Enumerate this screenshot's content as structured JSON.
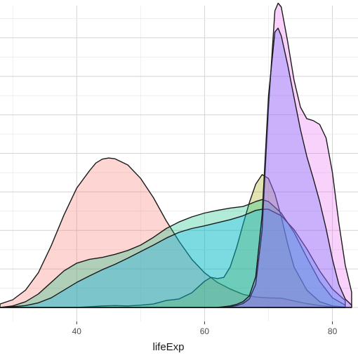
{
  "chart_data": {
    "type": "area",
    "subtype": "density",
    "xlabel": "lifeExp",
    "ylabel": "",
    "title": "",
    "xlim": [
      28,
      84
    ],
    "ylim": [
      0,
      0.082
    ],
    "x_ticks": [
      40,
      60,
      80
    ],
    "grid": true,
    "legend": "none",
    "series": [
      {
        "fill": "#f8766d",
        "points": [
          [
            28,
            0.0009
          ],
          [
            30,
            0.002
          ],
          [
            32,
            0.0045
          ],
          [
            34,
            0.009
          ],
          [
            36,
            0.016
          ],
          [
            38,
            0.024
          ],
          [
            40,
            0.031
          ],
          [
            42,
            0.0355
          ],
          [
            43,
            0.0375
          ],
          [
            44,
            0.0385
          ],
          [
            45,
            0.0388
          ],
          [
            46,
            0.0386
          ],
          [
            48,
            0.037
          ],
          [
            50,
            0.0335
          ],
          [
            52,
            0.0285
          ],
          [
            54,
            0.0225
          ],
          [
            56,
            0.0172
          ],
          [
            58,
            0.0125
          ],
          [
            60,
            0.009
          ],
          [
            62,
            0.0065
          ],
          [
            64,
            0.0048
          ],
          [
            66,
            0.0034
          ],
          [
            68,
            0.0027
          ],
          [
            70,
            0.0025
          ],
          [
            72,
            0.0024
          ],
          [
            74,
            0.0017
          ],
          [
            76,
            0.001
          ],
          [
            78,
            0.0005
          ],
          [
            80,
            0.0002
          ],
          [
            82,
            0.0001
          ]
        ]
      },
      {
        "fill": "#a3a500",
        "points": [
          [
            28,
            0
          ],
          [
            36,
            0
          ],
          [
            40,
            0
          ],
          [
            42,
            0.0002
          ],
          [
            44,
            0.0004
          ],
          [
            46,
            0.0005
          ],
          [
            48,
            0.0004
          ],
          [
            50,
            0.0006
          ],
          [
            52,
            0.0009
          ],
          [
            54,
            0.0018
          ],
          [
            56,
            0.0022
          ],
          [
            58,
            0.0038
          ],
          [
            60,
            0.0068
          ],
          [
            61,
            0.0078
          ],
          [
            62,
            0.0075
          ],
          [
            63,
            0.0078
          ],
          [
            64,
            0.0105
          ],
          [
            65,
            0.0155
          ],
          [
            66,
            0.0215
          ],
          [
            67,
            0.0272
          ],
          [
            68,
            0.032
          ],
          [
            69,
            0.0345
          ],
          [
            70,
            0.0335
          ],
          [
            71,
            0.0295
          ],
          [
            72,
            0.0235
          ],
          [
            73,
            0.0165
          ],
          [
            74,
            0.0105
          ],
          [
            76,
            0.0045
          ],
          [
            78,
            0.0015
          ],
          [
            80,
            0.0004
          ],
          [
            82,
            0.0001
          ]
        ]
      },
      {
        "fill": "#00bf7d",
        "points": [
          [
            28,
            0
          ],
          [
            30,
            0.0004
          ],
          [
            32,
            0.0015
          ],
          [
            34,
            0.0035
          ],
          [
            36,
            0.0065
          ],
          [
            38,
            0.0095
          ],
          [
            40,
            0.0115
          ],
          [
            42,
            0.0125
          ],
          [
            44,
            0.013
          ],
          [
            46,
            0.0138
          ],
          [
            48,
            0.0148
          ],
          [
            50,
            0.0162
          ],
          [
            52,
            0.0182
          ],
          [
            54,
            0.0205
          ],
          [
            56,
            0.0222
          ],
          [
            58,
            0.0235
          ],
          [
            60,
            0.0245
          ],
          [
            62,
            0.0252
          ],
          [
            64,
            0.0258
          ],
          [
            66,
            0.0262
          ],
          [
            67,
            0.0268
          ],
          [
            68,
            0.0275
          ],
          [
            69,
            0.028
          ],
          [
            70,
            0.0275
          ],
          [
            72,
            0.0245
          ],
          [
            74,
            0.0195
          ],
          [
            76,
            0.013
          ],
          [
            78,
            0.0068
          ],
          [
            80,
            0.0025
          ],
          [
            82,
            0.0006
          ]
        ]
      },
      {
        "fill": "#00b0f6",
        "points": [
          [
            28,
            0
          ],
          [
            30,
            0.0002
          ],
          [
            32,
            0.0005
          ],
          [
            34,
            0.0012
          ],
          [
            36,
            0.0025
          ],
          [
            38,
            0.0045
          ],
          [
            40,
            0.0065
          ],
          [
            42,
            0.0082
          ],
          [
            44,
            0.0098
          ],
          [
            46,
            0.0112
          ],
          [
            48,
            0.0128
          ],
          [
            50,
            0.0145
          ],
          [
            52,
            0.0162
          ],
          [
            54,
            0.018
          ],
          [
            56,
            0.0195
          ],
          [
            58,
            0.0205
          ],
          [
            60,
            0.0212
          ],
          [
            62,
            0.022
          ],
          [
            64,
            0.0228
          ],
          [
            66,
            0.0238
          ],
          [
            68,
            0.0252
          ],
          [
            69,
            0.0255
          ],
          [
            70,
            0.0255
          ],
          [
            72,
            0.0238
          ],
          [
            74,
            0.0202
          ],
          [
            76,
            0.0152
          ],
          [
            78,
            0.0095
          ],
          [
            80,
            0.0048
          ],
          [
            82,
            0.0018
          ]
        ]
      },
      {
        "fill": "#e76bf3",
        "points": [
          [
            63,
            0
          ],
          [
            64,
            0.0002
          ],
          [
            65,
            0.0005
          ],
          [
            66,
            0.001
          ],
          [
            67,
            0.0022
          ],
          [
            68,
            0.006
          ],
          [
            69,
            0.02
          ],
          [
            70,
            0.052
          ],
          [
            71,
            0.077
          ],
          [
            71.5,
            0.079
          ],
          [
            72,
            0.078
          ],
          [
            73,
            0.069
          ],
          [
            74,
            0.059
          ],
          [
            75,
            0.052
          ],
          [
            76,
            0.049
          ],
          [
            77,
            0.0485
          ],
          [
            78,
            0.0475
          ],
          [
            79,
            0.044
          ],
          [
            80,
            0.035
          ],
          [
            81,
            0.022
          ],
          [
            82,
            0.011
          ],
          [
            83,
            0.004
          ]
        ]
      },
      {
        "fill": "#6464ff",
        "points": [
          [
            62,
            0
          ],
          [
            63,
            0.0002
          ],
          [
            64,
            0.0004
          ],
          [
            65,
            0.0008
          ],
          [
            66,
            0.0015
          ],
          [
            67,
            0.003
          ],
          [
            68,
            0.008
          ],
          [
            69,
            0.024
          ],
          [
            70,
            0.055
          ],
          [
            71,
            0.0715
          ],
          [
            71.5,
            0.0725
          ],
          [
            72,
            0.0705
          ],
          [
            73,
            0.063
          ],
          [
            74,
            0.0545
          ],
          [
            75,
            0.0462
          ],
          [
            76,
            0.0392
          ],
          [
            77,
            0.0335
          ],
          [
            78,
            0.0275
          ],
          [
            79,
            0.0205
          ],
          [
            80,
            0.0125
          ],
          [
            81,
            0.006
          ],
          [
            82,
            0.0022
          ],
          [
            83,
            0.0006
          ]
        ]
      }
    ]
  }
}
